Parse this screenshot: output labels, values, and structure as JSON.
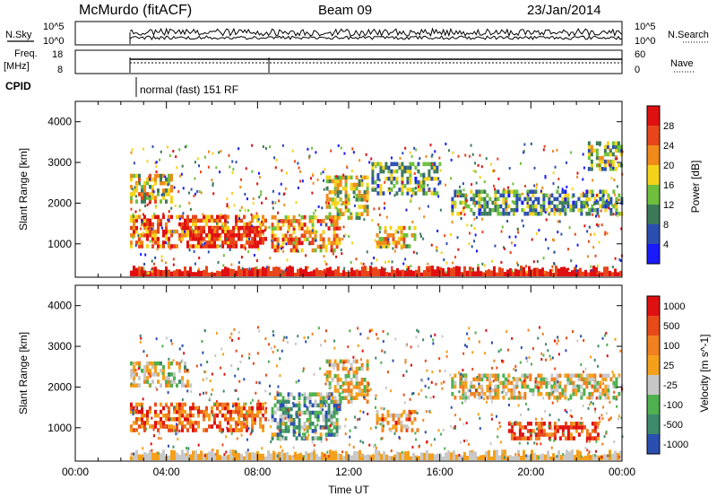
{
  "header": {
    "station": "McMurdo (fitACF)",
    "beam": "Beam 09",
    "date": "23/Jan/2014"
  },
  "top_panels": {
    "nsky_label": "N.Sky",
    "nsky_ticks": [
      "10^5",
      "10^0"
    ],
    "nsearch_label": "N.Search",
    "nsearch_ticks": [
      "10^5",
      "10^0"
    ],
    "freq_label_1": "Freq.",
    "freq_label_2": "[MHz]",
    "freq_ticks": [
      "18",
      "8"
    ],
    "nave_label": "Nave",
    "nave_ticks": [
      "60",
      "0"
    ],
    "cpid_label": "CPID",
    "cpid_text": "normal (fast) 151 RF"
  },
  "chart_data": [
    {
      "type": "heatmap",
      "name_in_image": "Power",
      "ylabel": "Slant Range [km]",
      "yticks": [
        "1000",
        "2000",
        "3000",
        "4000"
      ],
      "ylim": [
        180,
        4500
      ],
      "xlim_hours": [
        0,
        24
      ],
      "data_start_hour": 2.4,
      "colorbar_label": "Power [dB]",
      "colorbar_ticks": [
        "4",
        "8",
        "12",
        "16",
        "20",
        "24",
        "28"
      ],
      "colors": [
        "#1a1aff",
        "#2a4fb0",
        "#3c7a5a",
        "#6fbf3c",
        "#f5d31a",
        "#f08a1a",
        "#e8461a",
        "#e01010"
      ],
      "bands": [
        {
          "start": 2.4,
          "end": 8.4,
          "low": 900,
          "high": 1700,
          "level": 0.75
        },
        {
          "start": 2.4,
          "end": 4.2,
          "low": 2000,
          "high": 2700,
          "level": 0.55
        },
        {
          "start": 5.0,
          "end": 8.0,
          "low": 900,
          "high": 1400,
          "level": 0.95
        },
        {
          "start": 8.6,
          "end": 11.6,
          "low": 800,
          "high": 1700,
          "level": 0.7
        },
        {
          "start": 11.0,
          "end": 12.8,
          "low": 1600,
          "high": 2600,
          "level": 0.5
        },
        {
          "start": 13.0,
          "end": 16.0,
          "low": 2200,
          "high": 3000,
          "level": 0.35
        },
        {
          "start": 13.2,
          "end": 15.0,
          "low": 900,
          "high": 1400,
          "level": 0.6
        },
        {
          "start": 16.5,
          "end": 24.0,
          "low": 1700,
          "high": 2300,
          "level": 0.35
        },
        {
          "start": 22.5,
          "end": 24.0,
          "low": 2800,
          "high": 3500,
          "level": 0.4
        }
      ]
    },
    {
      "type": "heatmap",
      "name_in_image": "Velocity",
      "ylabel": "Slant Range [km]",
      "yticks": [
        "1000",
        "2000",
        "3000",
        "4000"
      ],
      "ylim": [
        180,
        4500
      ],
      "xlim_hours": [
        0,
        24
      ],
      "data_start_hour": 2.4,
      "xticks": [
        "00:00",
        "04:00",
        "08:00",
        "12:00",
        "16:00",
        "20:00",
        "00:00"
      ],
      "xlabel": "Time UT",
      "colorbar_label": "Velocity [m s^-1]",
      "colorbar_ticks": [
        "1000",
        "500",
        "100",
        "25",
        "-25",
        "-100",
        "-500",
        "-1000"
      ],
      "colors": [
        "#2a4fb0",
        "#3c8a6a",
        "#4fb04f",
        "#c8c8c8",
        "#f5a01a",
        "#f08020",
        "#e84a1a",
        "#e01010"
      ],
      "bands": [
        {
          "start": 2.4,
          "end": 8.4,
          "low": 900,
          "high": 1600,
          "level": 0.75
        },
        {
          "start": 8.6,
          "end": 11.6,
          "low": 700,
          "high": 1800,
          "level": 0.3
        },
        {
          "start": 2.4,
          "end": 5.0,
          "low": 2000,
          "high": 2600,
          "level": 0.45
        },
        {
          "start": 11.0,
          "end": 12.8,
          "low": 1600,
          "high": 2600,
          "level": 0.5
        },
        {
          "start": 13.2,
          "end": 15.0,
          "low": 900,
          "high": 1400,
          "level": 0.7
        },
        {
          "start": 16.5,
          "end": 24.0,
          "low": 1700,
          "high": 2300,
          "level": 0.5
        },
        {
          "start": 19.0,
          "end": 23.0,
          "low": 700,
          "high": 1100,
          "level": 0.85
        }
      ]
    }
  ]
}
